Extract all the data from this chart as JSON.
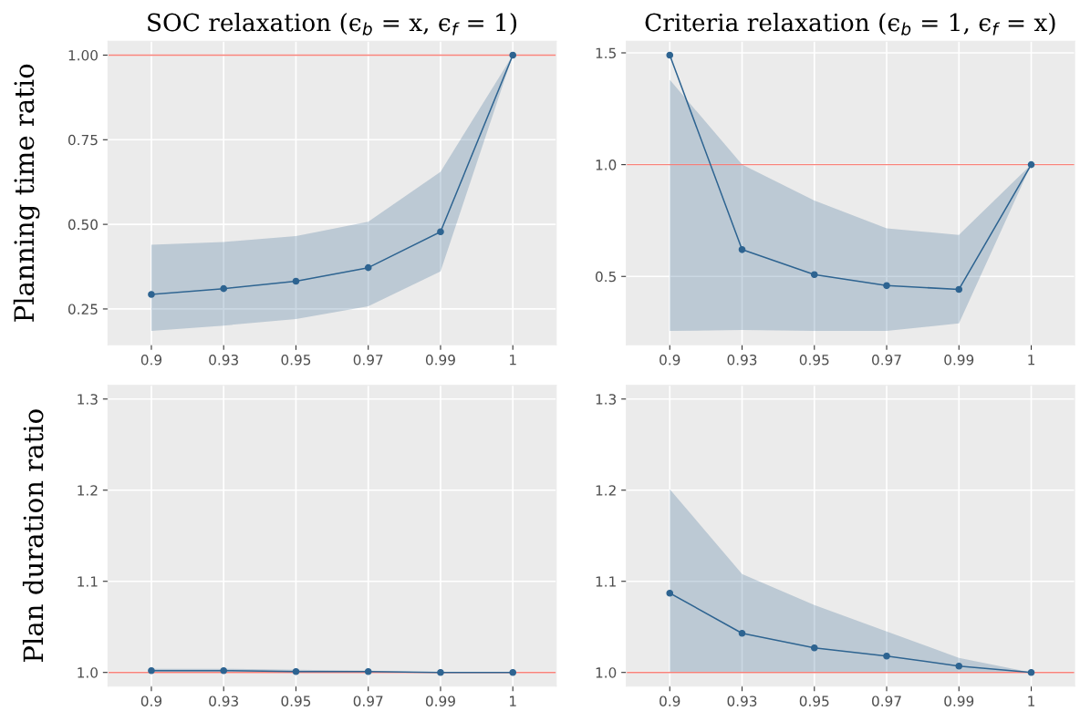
{
  "chart_data": [
    {
      "type": "line",
      "title": "SOC relaxation (ϵ$_{b}$ = x, ϵ$_{f}$ = 1)",
      "ylabel": "Planning time ratio",
      "categories": [
        "0.9",
        "0.93",
        "0.95",
        "0.97",
        "0.99",
        "1"
      ],
      "series": [
        {
          "color": "#2e6491",
          "values": [
            0.293,
            0.31,
            0.332,
            0.372,
            0.478,
            1.0
          ],
          "lower": [
            0.185,
            0.201,
            0.22,
            0.258,
            0.361,
            1.0
          ],
          "upper": [
            0.44,
            0.448,
            0.465,
            0.508,
            0.655,
            1.0
          ]
        }
      ],
      "ylim": [
        0.144,
        1.041
      ],
      "yticks": [
        {
          "value": 0.25,
          "label": "0.25"
        },
        {
          "value": 0.5,
          "label": "0.50"
        },
        {
          "value": 0.75,
          "label": "0.75"
        },
        {
          "value": 1.0,
          "label": "1.00"
        }
      ],
      "ref_lines": [
        {
          "axis": "y",
          "value": 1.0,
          "color": "#f8766d"
        }
      ],
      "grid": true,
      "marker": "circle",
      "line_style": "solid"
    },
    {
      "type": "line",
      "title": "Criteria relaxation (ϵ$_{b}$ = 1, ϵ$_{f}$ = x)",
      "categories": [
        "0.9",
        "0.93",
        "0.95",
        "0.97",
        "0.99",
        "1"
      ],
      "series": [
        {
          "color": "#2e6491",
          "values": [
            1.49,
            0.62,
            0.508,
            0.459,
            0.442,
            1.0
          ],
          "lower": [
            0.256,
            0.26,
            0.256,
            0.256,
            0.29,
            1.0
          ],
          "upper": [
            1.38,
            1.0,
            0.839,
            0.715,
            0.686,
            1.0
          ]
        }
      ],
      "ylim": [
        0.194,
        1.552
      ],
      "yticks": [
        {
          "value": 0.5,
          "label": "0.5"
        },
        {
          "value": 1.0,
          "label": "1.0"
        },
        {
          "value": 1.5,
          "label": "1.5"
        }
      ],
      "ref_lines": [
        {
          "axis": "y",
          "value": 1.0,
          "color": "#f8766d"
        }
      ],
      "grid": true,
      "marker": "circle",
      "line_style": "solid"
    },
    {
      "type": "line",
      "ylabel": "Plan duration ratio",
      "categories": [
        "0.9",
        "0.93",
        "0.95",
        "0.97",
        "0.99",
        "1"
      ],
      "series": [
        {
          "color": "#2e6491",
          "values": [
            1.002,
            1.002,
            1.001,
            1.001,
            1.0,
            1.0
          ],
          "lower": [
            1.0,
            1.0,
            1.0,
            1.0,
            1.0,
            1.0
          ],
          "upper": [
            1.004,
            1.004,
            1.003,
            1.002,
            1.0,
            1.0
          ]
        }
      ],
      "ylim": [
        0.985,
        1.315
      ],
      "yticks": [
        {
          "value": 1.0,
          "label": "1.0"
        },
        {
          "value": 1.1,
          "label": "1.1"
        },
        {
          "value": 1.2,
          "label": "1.2"
        },
        {
          "value": 1.3,
          "label": "1.3"
        }
      ],
      "ref_lines": [
        {
          "axis": "y",
          "value": 1.0,
          "color": "#f8766d"
        }
      ],
      "grid": true,
      "marker": "circle",
      "line_style": "solid"
    },
    {
      "type": "line",
      "categories": [
        "0.9",
        "0.93",
        "0.95",
        "0.97",
        "0.99",
        "1"
      ],
      "series": [
        {
          "color": "#2e6491",
          "values": [
            1.087,
            1.043,
            1.027,
            1.018,
            1.007,
            1.0
          ],
          "lower": [
            1.0,
            1.0,
            1.0,
            1.0,
            1.0,
            1.0
          ],
          "upper": [
            1.201,
            1.108,
            1.074,
            1.045,
            1.016,
            1.0
          ]
        }
      ],
      "ylim": [
        0.985,
        1.315
      ],
      "yticks": [
        {
          "value": 1.0,
          "label": "1.0"
        },
        {
          "value": 1.1,
          "label": "1.1"
        },
        {
          "value": 1.2,
          "label": "1.2"
        },
        {
          "value": 1.3,
          "label": "1.3"
        }
      ],
      "ref_lines": [
        {
          "axis": "y",
          "value": 1.0,
          "color": "#f8766d"
        }
      ],
      "grid": true,
      "marker": "circle",
      "line_style": "solid"
    }
  ]
}
